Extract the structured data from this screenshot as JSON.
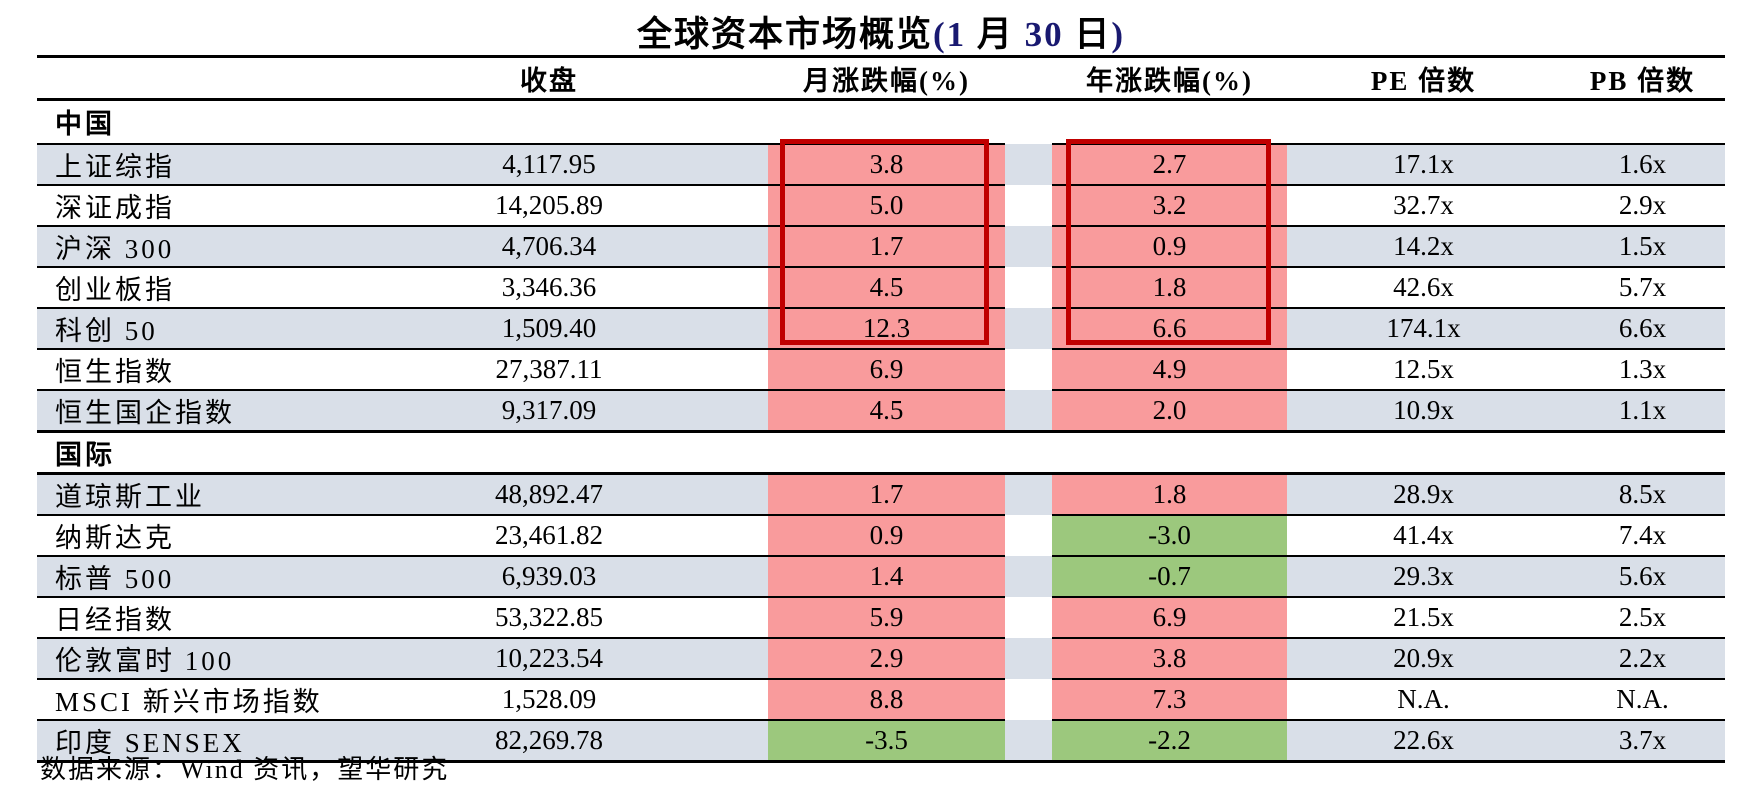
{
  "title": {
    "main": "全球资本市场概览",
    "date_parts": [
      {
        "text": "(1",
        "blue": true
      },
      {
        "text": " 月 ",
        "blue": false
      },
      {
        "text": "30",
        "blue": true
      },
      {
        "text": " 日",
        "blue": false
      },
      {
        "text": ")",
        "blue": true
      }
    ]
  },
  "columns": [
    {
      "key": "close",
      "label": "收盘"
    },
    {
      "key": "month_chg",
      "label": "月涨跌幅(%)"
    },
    {
      "key": "year_chg",
      "label": "年涨跌幅(%)"
    },
    {
      "key": "pe",
      "label": "PE 倍数"
    },
    {
      "key": "pb",
      "label": "PB 倍数"
    }
  ],
  "sections": [
    {
      "label": "中国",
      "rows": [
        {
          "name": "上证综指",
          "close": "4,117.95",
          "month_chg": "3.8",
          "year_chg": "2.7",
          "pe": "17.1x",
          "pb": "1.6x"
        },
        {
          "name": "深证成指",
          "close": "14,205.89",
          "month_chg": "5.0",
          "year_chg": "3.2",
          "pe": "32.7x",
          "pb": "2.9x"
        },
        {
          "name": "沪深 300",
          "close": "4,706.34",
          "month_chg": "1.7",
          "year_chg": "0.9",
          "pe": "14.2x",
          "pb": "1.5x"
        },
        {
          "name": "创业板指",
          "close": "3,346.36",
          "month_chg": "4.5",
          "year_chg": "1.8",
          "pe": "42.6x",
          "pb": "5.7x"
        },
        {
          "name": "科创 50",
          "close": "1,509.40",
          "month_chg": "12.3",
          "year_chg": "6.6",
          "pe": "174.1x",
          "pb": "6.6x"
        },
        {
          "name": "恒生指数",
          "close": "27,387.11",
          "month_chg": "6.9",
          "year_chg": "4.9",
          "pe": "12.5x",
          "pb": "1.3x"
        },
        {
          "name": "恒生国企指数",
          "close": "9,317.09",
          "month_chg": "4.5",
          "year_chg": "2.0",
          "pe": "10.9x",
          "pb": "1.1x"
        }
      ]
    },
    {
      "label": "国际",
      "rows": [
        {
          "name": "道琼斯工业",
          "close": "48,892.47",
          "month_chg": "1.7",
          "year_chg": "1.8",
          "pe": "28.9x",
          "pb": "8.5x"
        },
        {
          "name": "纳斯达克",
          "close": "23,461.82",
          "month_chg": "0.9",
          "year_chg": "-3.0",
          "pe": "41.4x",
          "pb": "7.4x"
        },
        {
          "name": "标普 500",
          "close": "6,939.03",
          "month_chg": "1.4",
          "year_chg": "-0.7",
          "pe": "29.3x",
          "pb": "5.6x"
        },
        {
          "name": "日经指数",
          "close": "53,322.85",
          "month_chg": "5.9",
          "year_chg": "6.9",
          "pe": "21.5x",
          "pb": "2.5x"
        },
        {
          "name": "伦敦富时 100",
          "close": "10,223.54",
          "month_chg": "2.9",
          "year_chg": "3.8",
          "pe": "20.9x",
          "pb": "2.2x"
        },
        {
          "name": "MSCI 新兴市场指数",
          "close": "1,528.09",
          "month_chg": "8.8",
          "year_chg": "7.3",
          "pe": "N.A.",
          "pb": "N.A."
        },
        {
          "name": "印度 SENSEX",
          "close": "82,269.78",
          "month_chg": "-3.5",
          "year_chg": "-2.2",
          "pe": "22.6x",
          "pb": "3.7x"
        }
      ]
    }
  ],
  "red_boxes": {
    "section": "中国",
    "row_start_name": "上证综指",
    "row_end_name": "科创 50",
    "columns": [
      "month_chg",
      "year_chg"
    ]
  },
  "footer": {
    "source": "数据来源：Wind 资讯，望华研究"
  },
  "colors": {
    "pos": "#F99B9C",
    "neg": "#9CC87D",
    "stripe": "#D9DFE8",
    "boxborder": "#C00000",
    "title_date": "#191970"
  }
}
